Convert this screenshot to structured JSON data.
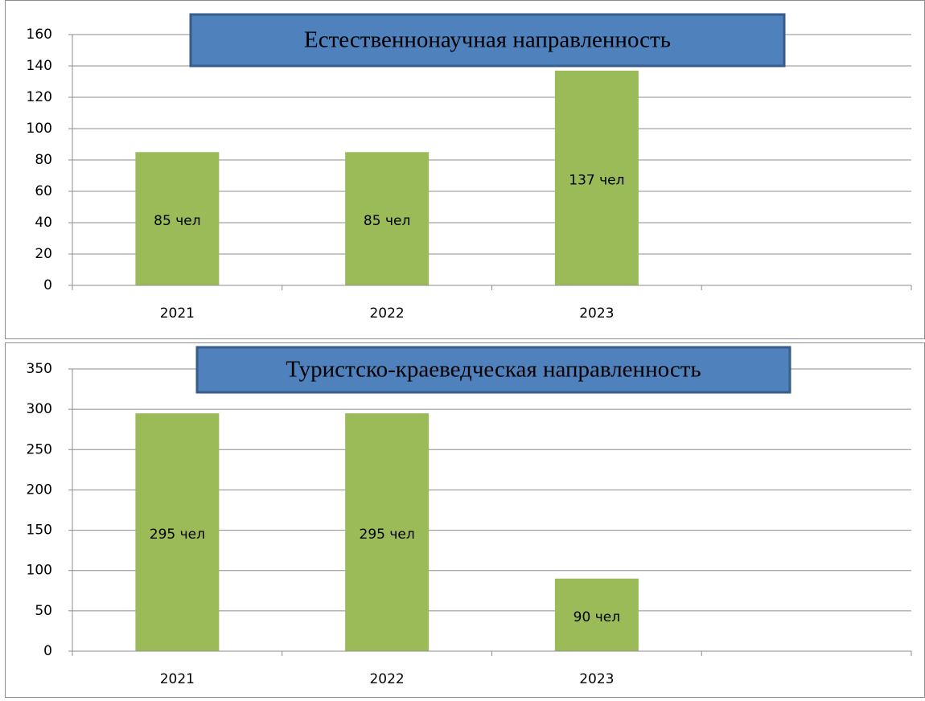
{
  "chart_data": [
    {
      "type": "bar",
      "title": "Естественнонаучная направленность",
      "categories": [
        "2021",
        "2022",
        "2023",
        null
      ],
      "values": [
        85,
        85,
        137,
        null
      ],
      "value_labels": [
        "85 чел",
        "85 чел",
        "137  чел",
        null
      ],
      "color": "#9bbb59",
      "ylim": [
        0,
        160
      ],
      "yticks": [
        0,
        20,
        40,
        60,
        80,
        100,
        120,
        140,
        160
      ],
      "grid": true
    },
    {
      "type": "bar",
      "title": "Туристско-краеведческая направленность",
      "categories": [
        "2021",
        "2022",
        "2023",
        null
      ],
      "values": [
        295,
        295,
        90,
        null
      ],
      "value_labels": [
        "295 чел",
        "295 чел",
        "90 чел",
        null
      ],
      "color": "#9bbb59",
      "ylim": [
        0,
        350
      ],
      "yticks": [
        0,
        50,
        100,
        150,
        200,
        250,
        300,
        350
      ],
      "grid": true
    }
  ]
}
